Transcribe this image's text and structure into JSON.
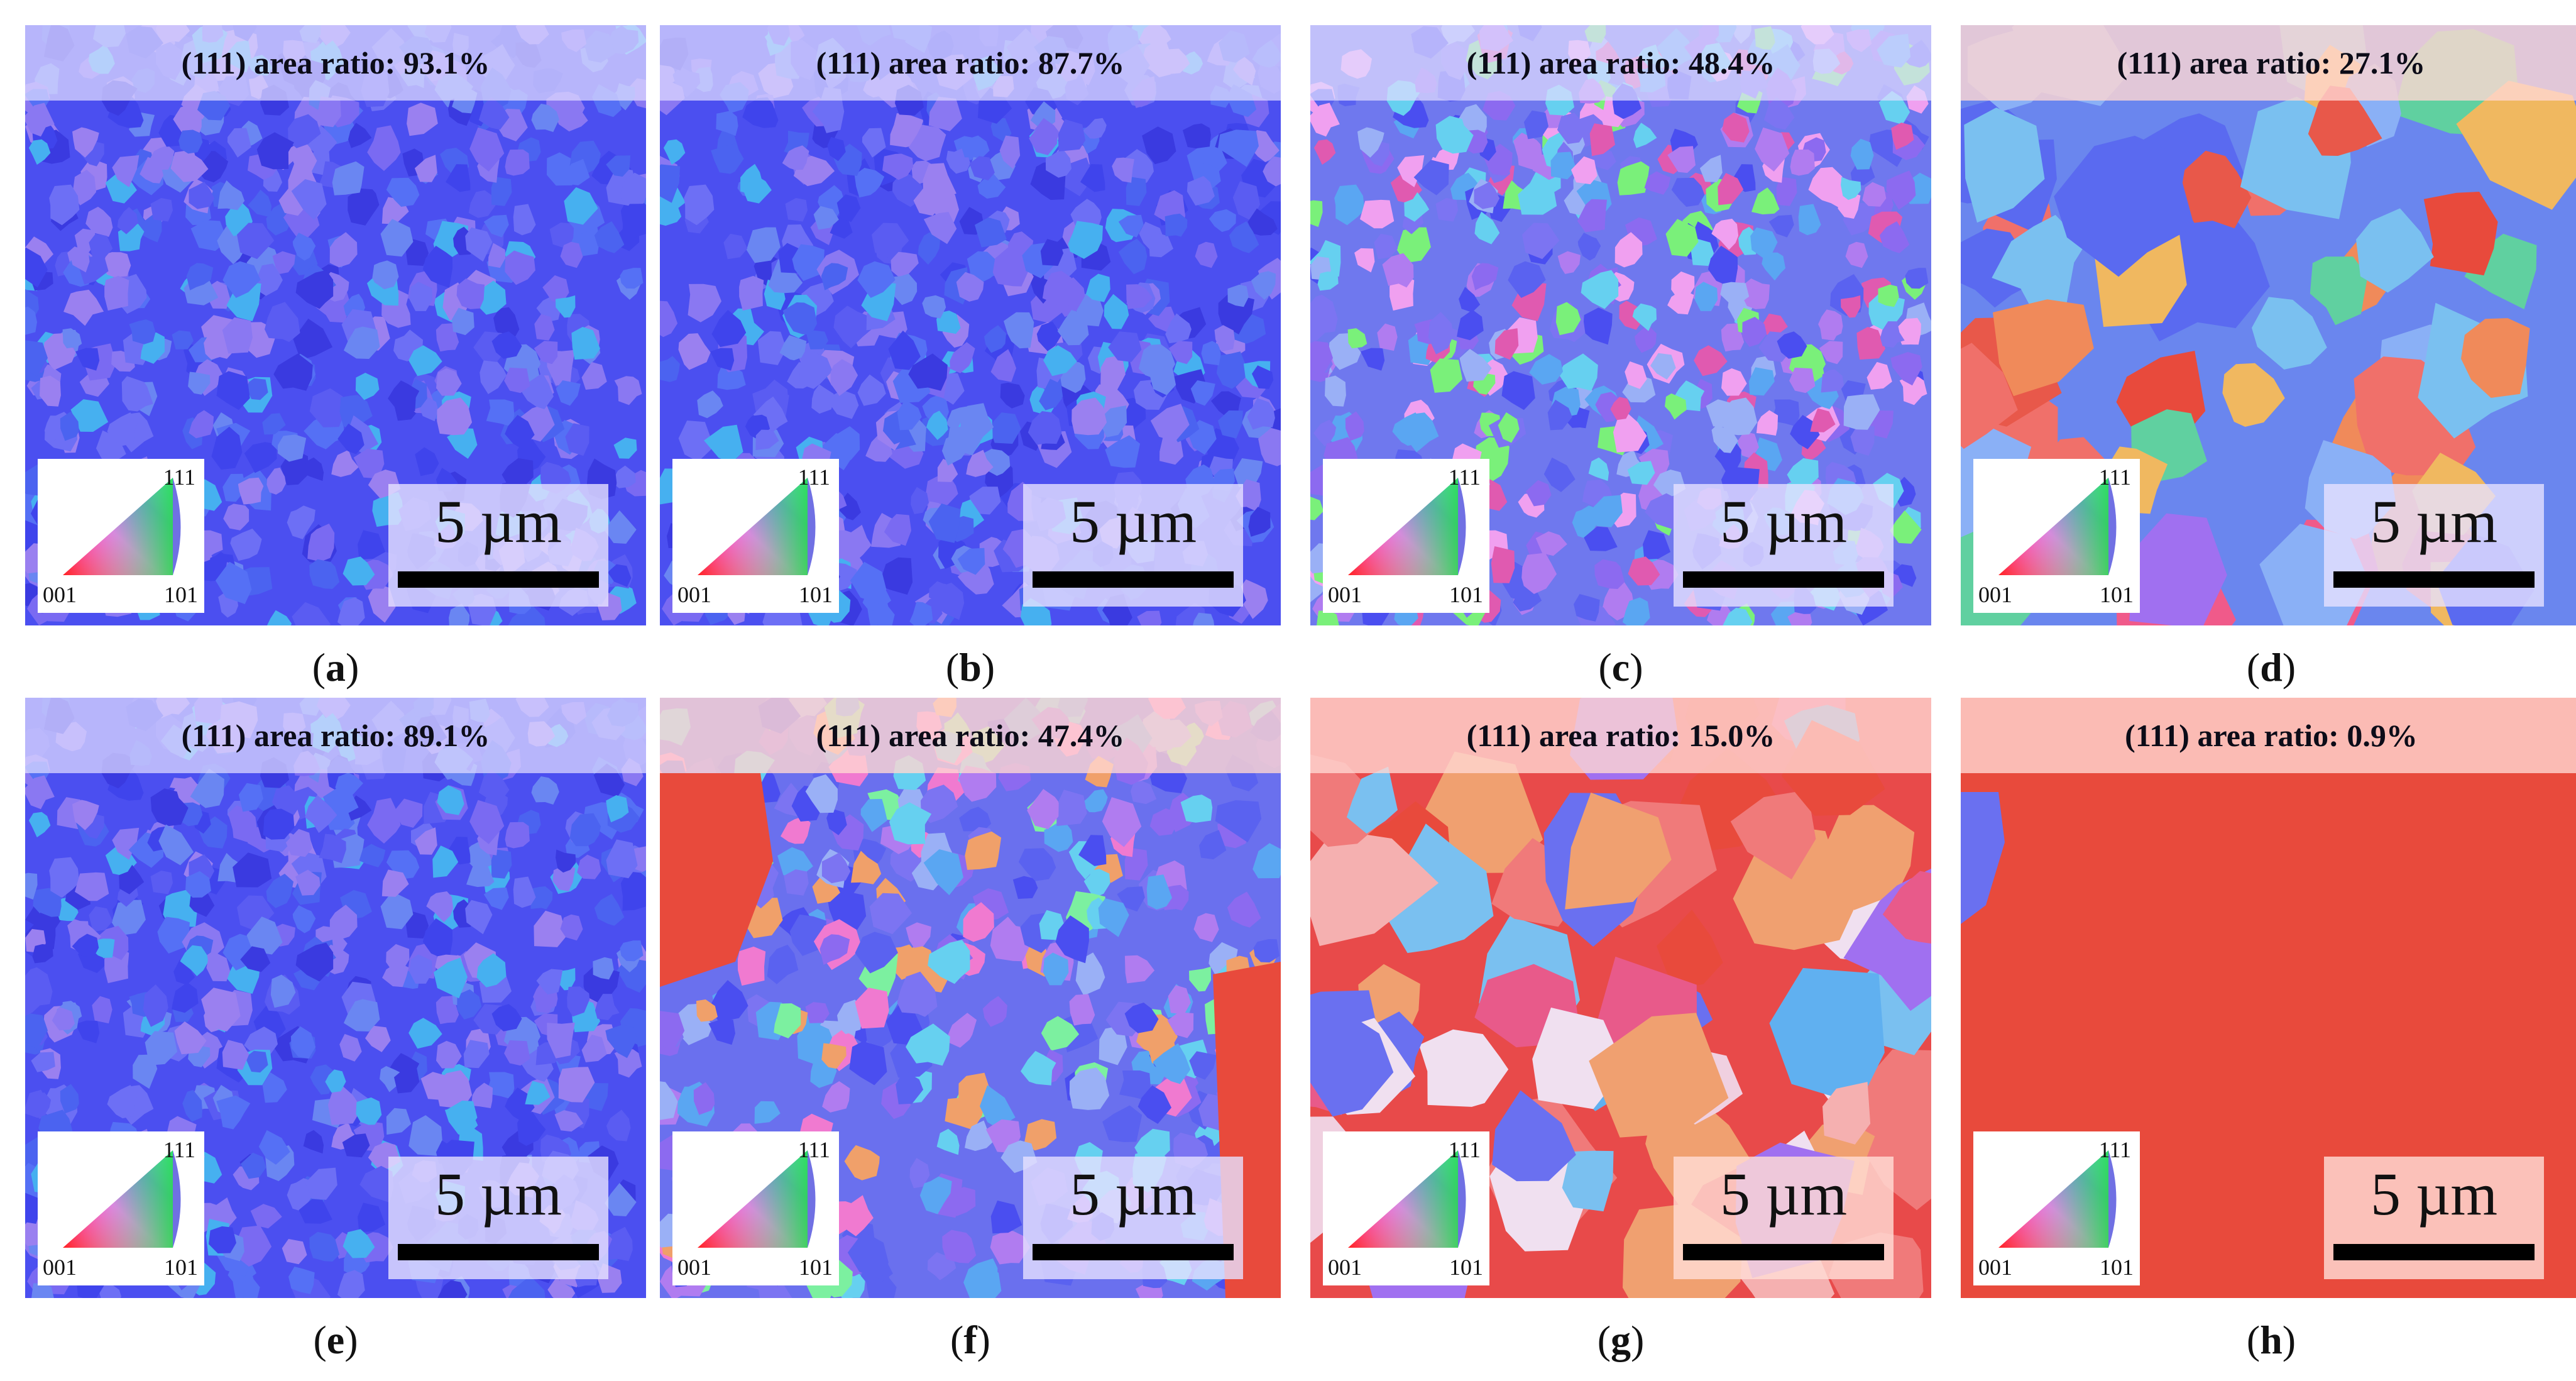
{
  "figure": {
    "panels": [
      {
        "id": "a",
        "caption_letter": "a",
        "ratio_label": "(111) area ratio: 93.1%",
        "scale_label": "5 µm",
        "theme": "blue"
      },
      {
        "id": "b",
        "caption_letter": "b",
        "ratio_label": "(111) area ratio: 87.7%",
        "scale_label": "5 µm",
        "theme": "blue"
      },
      {
        "id": "c",
        "caption_letter": "c",
        "ratio_label": "(111) area ratio: 48.4%",
        "scale_label": "5 µm",
        "theme": "mixed"
      },
      {
        "id": "d",
        "caption_letter": "d",
        "ratio_label": "(111) area ratio: 27.1%",
        "scale_label": "5 µm",
        "theme": "coarse"
      },
      {
        "id": "e",
        "caption_letter": "e",
        "ratio_label": "(111) area ratio: 89.1%",
        "scale_label": "5 µm",
        "theme": "blue"
      },
      {
        "id": "f",
        "caption_letter": "f",
        "ratio_label": "(111) area ratio: 47.4%",
        "scale_label": "5 µm",
        "theme": "mixed-red"
      },
      {
        "id": "g",
        "caption_letter": "g",
        "ratio_label": "(111) area ratio: 15.0%",
        "scale_label": "5 µm",
        "theme": "coarse-red"
      },
      {
        "id": "h",
        "caption_letter": "h",
        "ratio_label": "(111) area ratio: 0.9%",
        "scale_label": "5 µm",
        "theme": "red"
      }
    ],
    "legend": {
      "top_label": "111",
      "left_label": "001",
      "right_label": "101"
    },
    "colors": {
      "blue_grain": "#4a4cf0",
      "red_grain": "#e84a3c",
      "banner_cool": "#e1dcff",
      "banner_warm": "#ffd7d2"
    }
  }
}
